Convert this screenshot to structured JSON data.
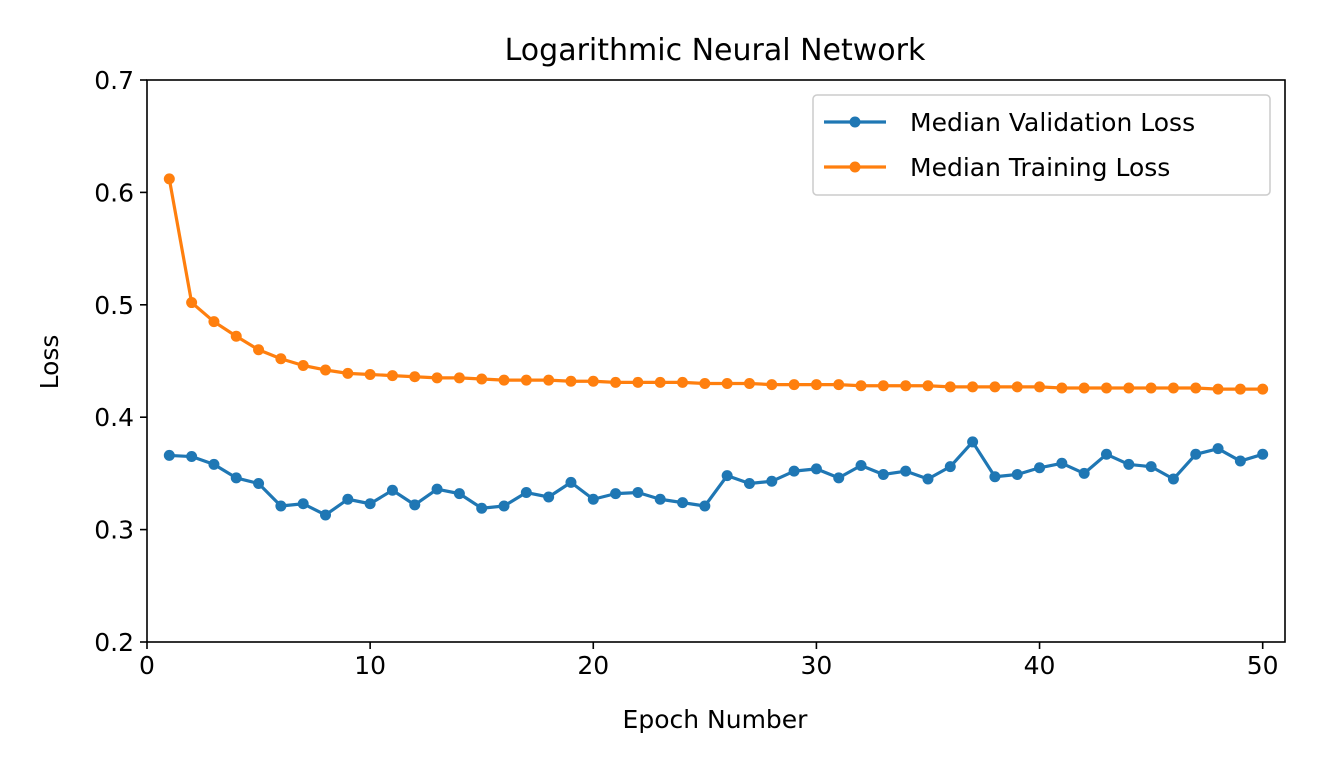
{
  "chart_data": {
    "type": "line",
    "title": "Logarithmic Neural Network",
    "xlabel": "Epoch Number",
    "ylabel": "Loss",
    "xlim": [
      0,
      51
    ],
    "ylim": [
      0.2,
      0.7
    ],
    "xticks": [
      0,
      10,
      20,
      30,
      40,
      50
    ],
    "xtick_labels": [
      "0",
      "10",
      "20",
      "30",
      "40",
      "50"
    ],
    "yticks": [
      0.2,
      0.3,
      0.4,
      0.5,
      0.6,
      0.7
    ],
    "ytick_labels": [
      "0.2",
      "0.3",
      "0.4",
      "0.5",
      "0.6",
      "0.7"
    ],
    "grid": false,
    "legend_position": "top-right",
    "x": [
      1,
      2,
      3,
      4,
      5,
      6,
      7,
      8,
      9,
      10,
      11,
      12,
      13,
      14,
      15,
      16,
      17,
      18,
      19,
      20,
      21,
      22,
      23,
      24,
      25,
      26,
      27,
      28,
      29,
      30,
      31,
      32,
      33,
      34,
      35,
      36,
      37,
      38,
      39,
      40,
      41,
      42,
      43,
      44,
      45,
      46,
      47,
      48,
      49,
      50
    ],
    "series": [
      {
        "name": "Median Validation Loss",
        "color": "#1f77b4",
        "values": [
          0.366,
          0.365,
          0.358,
          0.346,
          0.341,
          0.321,
          0.323,
          0.313,
          0.327,
          0.323,
          0.335,
          0.322,
          0.336,
          0.332,
          0.319,
          0.321,
          0.333,
          0.329,
          0.342,
          0.327,
          0.332,
          0.333,
          0.327,
          0.324,
          0.321,
          0.348,
          0.341,
          0.343,
          0.352,
          0.354,
          0.346,
          0.357,
          0.349,
          0.352,
          0.345,
          0.356,
          0.378,
          0.347,
          0.349,
          0.355,
          0.359,
          0.35,
          0.367,
          0.358,
          0.356,
          0.345,
          0.367,
          0.372,
          0.361,
          0.367
        ]
      },
      {
        "name": "Median Training Loss",
        "color": "#ff7f0e",
        "values": [
          0.612,
          0.502,
          0.485,
          0.472,
          0.46,
          0.452,
          0.446,
          0.442,
          0.439,
          0.438,
          0.437,
          0.436,
          0.435,
          0.435,
          0.434,
          0.433,
          0.433,
          0.433,
          0.432,
          0.432,
          0.431,
          0.431,
          0.431,
          0.431,
          0.43,
          0.43,
          0.43,
          0.429,
          0.429,
          0.429,
          0.429,
          0.428,
          0.428,
          0.428,
          0.428,
          0.427,
          0.427,
          0.427,
          0.427,
          0.427,
          0.426,
          0.426,
          0.426,
          0.426,
          0.426,
          0.426,
          0.426,
          0.425,
          0.425,
          0.425
        ]
      }
    ]
  }
}
